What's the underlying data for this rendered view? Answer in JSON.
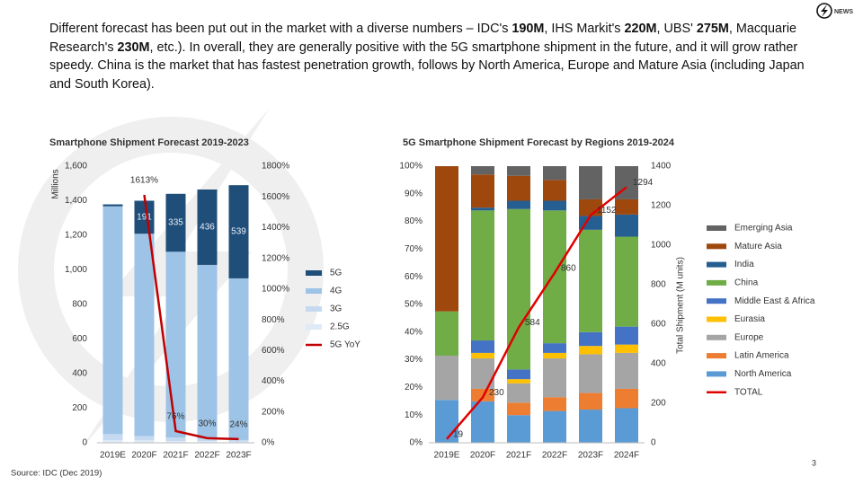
{
  "header": {
    "segments": [
      {
        "text": "Different  forecast has been put out in the market with a diverse numbers – IDC's ",
        "bold": false
      },
      {
        "text": "190M",
        "bold": true
      },
      {
        "text": ", IHS Markit's ",
        "bold": false
      },
      {
        "text": "220M",
        "bold": true
      },
      {
        "text": ", UBS' ",
        "bold": false
      },
      {
        "text": "275M",
        "bold": true
      },
      {
        "text": ", Macquarie Research's ",
        "bold": false
      },
      {
        "text": "230M",
        "bold": true
      },
      {
        "text": ", etc.). In overall, they are generally positive with the 5G smartphone shipment in the future, and it will grow rather speedy. China is the market that has fastest penetration growth, follows by North America, Europe and Mature Asia (including Japan and South Korea).",
        "bold": false
      }
    ]
  },
  "logo": {
    "text": "NEWS"
  },
  "source": "Source: IDC (Dec 2019)",
  "page_number": "3",
  "chart_data": [
    {
      "type": "bar",
      "stacked": true,
      "title": "Smartphone Shipment Forecast 2019-2023",
      "y_label": "Millions",
      "categories": [
        "2019E",
        "2020F",
        "2021F",
        "2022F",
        "2023F"
      ],
      "ylim": [
        0,
        1600
      ],
      "yticks": [
        0,
        200,
        400,
        600,
        800,
        {
          "value": 1000,
          "label": "1,000"
        },
        {
          "value": 1200,
          "label": "1,200"
        },
        {
          "value": 1400,
          "label": "1,400"
        },
        {
          "value": 1600,
          "label": "1,600"
        }
      ],
      "y2lim": [
        0,
        1800
      ],
      "y2ticks": [
        {
          "value": 0,
          "label": "0%"
        },
        {
          "value": 200,
          "label": "200%"
        },
        {
          "value": 400,
          "label": "400%"
        },
        {
          "value": 600,
          "label": "600%"
        },
        {
          "value": 800,
          "label": "800%"
        },
        {
          "value": 1000,
          "label": "1000%"
        },
        {
          "value": 1200,
          "label": "1200%"
        },
        {
          "value": 1400,
          "label": "1400%"
        },
        {
          "value": 1600,
          "label": "1600%"
        },
        {
          "value": 1800,
          "label": "1800%"
        }
      ],
      "grid": false,
      "series": [
        {
          "name": "2.5G",
          "color": "#deebf7",
          "values": [
            15,
            14,
            10,
            9,
            6
          ]
        },
        {
          "name": "3G",
          "color": "#c5daf0",
          "values": [
            35,
            25,
            20,
            15,
            10
          ]
        },
        {
          "name": "4G",
          "color": "#9dc3e6",
          "values": [
            1318,
            1170,
            1075,
            1005,
            935
          ]
        },
        {
          "name": "5G",
          "color": "#1f4e79",
          "values": [
            11,
            191,
            335,
            436,
            539
          ],
          "value_labels": [
            null,
            "191",
            "335",
            "436",
            "539"
          ]
        },
        {
          "name": "5G YoY",
          "type": "line",
          "axis": "y2",
          "color": "#c00000",
          "values": [
            null,
            1613,
            76,
            30,
            24
          ],
          "value_labels": [
            null,
            "1613%",
            "76%",
            "30%",
            "24%"
          ]
        }
      ]
    },
    {
      "type": "bar",
      "stacked": true,
      "title": "5G Smartphone Shipment Forecast by Regions 2019-2024",
      "y2_label": "Total Shipment (M units)",
      "categories": [
        "2019E",
        "2020F",
        "2021F",
        "2022F",
        "2023F",
        "2024F"
      ],
      "ylim": [
        0,
        100
      ],
      "yticks": [
        {
          "value": 0,
          "label": "0%"
        },
        {
          "value": 10,
          "label": "10%"
        },
        {
          "value": 20,
          "label": "20%"
        },
        {
          "value": 30,
          "label": "30%"
        },
        {
          "value": 40,
          "label": "40%"
        },
        {
          "value": 50,
          "label": "50%"
        },
        {
          "value": 60,
          "label": "60%"
        },
        {
          "value": 70,
          "label": "70%"
        },
        {
          "value": 80,
          "label": "80%"
        },
        {
          "value": 90,
          "label": "90%"
        },
        {
          "value": 100,
          "label": "100%"
        }
      ],
      "y2lim": [
        0,
        1400
      ],
      "y2ticks": [
        0,
        200,
        400,
        600,
        800,
        1000,
        1200,
        1400
      ],
      "grid": false,
      "series": [
        {
          "name": "North America",
          "color": "#5b9bd5",
          "values": [
            15.5,
            15,
            10,
            11.5,
            12,
            12.5
          ]
        },
        {
          "name": "Latin America",
          "color": "#ed7d31",
          "values": [
            0,
            4.5,
            4.5,
            5,
            6,
            7
          ]
        },
        {
          "name": "Europe",
          "color": "#a5a5a5",
          "values": [
            16,
            11,
            7,
            14,
            14,
            13
          ]
        },
        {
          "name": "Eurasia",
          "color": "#ffc000",
          "values": [
            0,
            2,
            1.5,
            2,
            3,
            3
          ]
        },
        {
          "name": "Middle East & Africa",
          "color": "#4472c4",
          "values": [
            0,
            4.5,
            3.5,
            3.5,
            5,
            6.5
          ]
        },
        {
          "name": "China",
          "color": "#70ad47",
          "values": [
            16,
            47,
            58,
            48,
            37,
            32.5
          ]
        },
        {
          "name": "India",
          "color": "#255e91",
          "values": [
            0,
            1,
            3,
            3.5,
            5,
            8
          ]
        },
        {
          "name": "Mature Asia",
          "color": "#9e480e",
          "values": [
            52.5,
            12,
            9,
            7.5,
            6,
            5.5
          ]
        },
        {
          "name": "Emerging Asia",
          "color": "#636363",
          "values": [
            0,
            3,
            3.5,
            5,
            12,
            12
          ]
        },
        {
          "name": "TOTAL",
          "type": "line",
          "axis": "y2",
          "color": "#e00000",
          "values": [
            19,
            230,
            584,
            860,
            1152,
            1294
          ],
          "data_labels": true
        }
      ]
    }
  ]
}
